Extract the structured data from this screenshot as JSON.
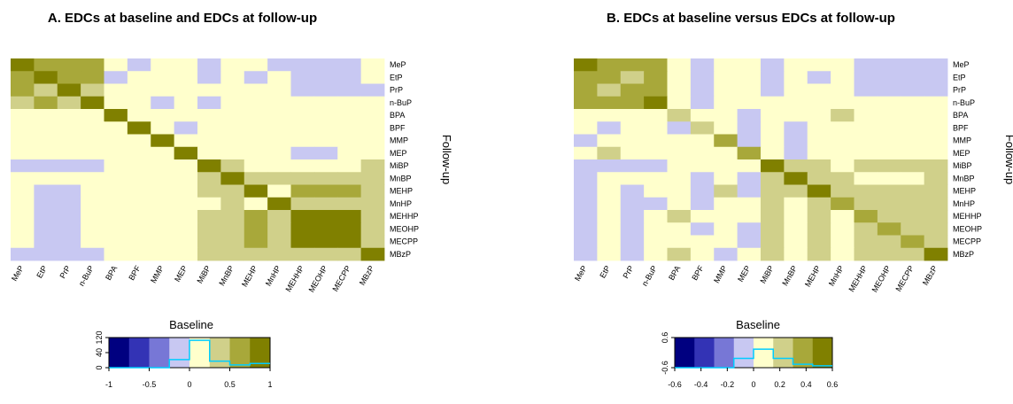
{
  "chart_data": [
    {
      "type": "heatmap",
      "title": "A. EDCs at baseline and EDCs at follow-up",
      "xlabel": "Baseline",
      "ylabel": "Follow-up",
      "x_categories": [
        "MeP",
        "EtP",
        "PrP",
        "n-BuP",
        "BPA",
        "BPF",
        "MMP",
        "MEP",
        "MiBP",
        "MnBP",
        "MEHP",
        "MnHP",
        "MEHHP",
        "MEOHP",
        "MECPP",
        "MBzP"
      ],
      "y_categories": [
        "MeP",
        "EtP",
        "PrP",
        "n-BuP",
        "BPA",
        "BPF",
        "MMP",
        "MEP",
        "MiBP",
        "MnBP",
        "MEHP",
        "MnHP",
        "MEHHP",
        "MEOHP",
        "MECPP",
        "MBzP"
      ],
      "palette": [
        "#000080",
        "#3333B5",
        "#7777D6",
        "#C8C8F2",
        "#FFFFCC",
        "#D0D08A",
        "#A8A83A",
        "#808000"
      ],
      "color_key": {
        "range": [
          -1,
          1
        ],
        "ticks": [
          "-1",
          "-0.5",
          "0",
          "0.5",
          "1"
        ],
        "histogram_axis_ticks": [
          "0",
          "40",
          "120"
        ],
        "histogram_line_color": "#00CCFF",
        "histogram": [
          0,
          0,
          0,
          35,
          118,
          28,
          12,
          18
        ]
      },
      "matrix_levels": [
        [
          7,
          6,
          6,
          6,
          4,
          3,
          4,
          4,
          3,
          4,
          4,
          3,
          3,
          3,
          3,
          4
        ],
        [
          6,
          7,
          6,
          6,
          3,
          4,
          4,
          4,
          3,
          4,
          3,
          4,
          3,
          3,
          3,
          4
        ],
        [
          6,
          5,
          7,
          5,
          4,
          4,
          4,
          4,
          4,
          4,
          4,
          4,
          3,
          3,
          3,
          3
        ],
        [
          5,
          6,
          5,
          7,
          4,
          4,
          3,
          4,
          3,
          4,
          4,
          4,
          4,
          4,
          4,
          4
        ],
        [
          4,
          4,
          4,
          4,
          7,
          4,
          4,
          4,
          4,
          4,
          4,
          4,
          4,
          4,
          4,
          4
        ],
        [
          4,
          4,
          4,
          4,
          4,
          7,
          4,
          3,
          4,
          4,
          4,
          4,
          4,
          4,
          4,
          4
        ],
        [
          4,
          4,
          4,
          4,
          4,
          4,
          7,
          4,
          4,
          4,
          4,
          4,
          4,
          4,
          4,
          4
        ],
        [
          4,
          4,
          4,
          4,
          4,
          4,
          4,
          7,
          4,
          4,
          4,
          4,
          3,
          3,
          4,
          4
        ],
        [
          3,
          3,
          3,
          3,
          4,
          4,
          4,
          4,
          7,
          5,
          4,
          4,
          4,
          4,
          4,
          5
        ],
        [
          4,
          4,
          4,
          4,
          4,
          4,
          4,
          4,
          5,
          7,
          5,
          5,
          5,
          5,
          5,
          5
        ],
        [
          4,
          3,
          3,
          4,
          4,
          4,
          4,
          4,
          5,
          5,
          7,
          4,
          6,
          6,
          6,
          5
        ],
        [
          4,
          3,
          3,
          4,
          4,
          4,
          4,
          4,
          4,
          5,
          4,
          7,
          5,
          5,
          5,
          5
        ],
        [
          4,
          3,
          3,
          4,
          4,
          4,
          4,
          4,
          5,
          5,
          6,
          5,
          7,
          7,
          7,
          5
        ],
        [
          4,
          3,
          3,
          4,
          4,
          4,
          4,
          4,
          5,
          5,
          6,
          5,
          7,
          7,
          7,
          5
        ],
        [
          4,
          3,
          3,
          4,
          4,
          4,
          4,
          4,
          5,
          5,
          6,
          5,
          7,
          7,
          7,
          5
        ],
        [
          3,
          3,
          3,
          3,
          4,
          4,
          4,
          4,
          5,
          5,
          5,
          5,
          5,
          5,
          5,
          7
        ]
      ]
    },
    {
      "type": "heatmap",
      "title": "B. EDCs at baseline versus EDCs at follow-up",
      "xlabel": "Baseline",
      "ylabel": "Follow-up",
      "x_categories": [
        "MeP",
        "EtP",
        "PrP",
        "n-BuP",
        "BPA",
        "BPF",
        "MMP",
        "MEP",
        "MiBP",
        "MnBP",
        "MEHP",
        "MnHP",
        "MEHHP",
        "MEOHP",
        "MECPP",
        "MBzP"
      ],
      "y_categories": [
        "MeP",
        "EtP",
        "PrP",
        "n-BuP",
        "BPA",
        "BPF",
        "MMP",
        "MEP",
        "MiBP",
        "MnBP",
        "MEHP",
        "MnHP",
        "MEHHP",
        "MEOHP",
        "MECPP",
        "MBzP"
      ],
      "palette": [
        "#000080",
        "#3333B5",
        "#7777D6",
        "#C8C8F2",
        "#FFFFCC",
        "#D0D08A",
        "#A8A83A",
        "#808000"
      ],
      "color_key": {
        "range": [
          -0.6,
          0.6
        ],
        "ticks": [
          "-0.6",
          "-0.4",
          "-0.2",
          "0",
          "0.2",
          "0.4",
          "0.6"
        ],
        "histogram_axis_ticks": [
          "-0.6",
          "0.6"
        ],
        "histogram_line_color": "#00CCFF",
        "histogram": [
          0,
          0,
          0,
          40,
          80,
          40,
          15,
          8
        ]
      },
      "matrix_levels": [
        [
          7,
          6,
          6,
          6,
          4,
          3,
          4,
          4,
          3,
          4,
          4,
          4,
          3,
          3,
          3,
          3
        ],
        [
          6,
          6,
          5,
          6,
          4,
          3,
          4,
          4,
          3,
          4,
          3,
          4,
          3,
          3,
          3,
          3
        ],
        [
          6,
          5,
          6,
          6,
          4,
          3,
          4,
          4,
          3,
          4,
          4,
          4,
          3,
          3,
          3,
          3
        ],
        [
          6,
          6,
          6,
          7,
          4,
          3,
          4,
          4,
          4,
          4,
          4,
          4,
          4,
          4,
          4,
          4
        ],
        [
          4,
          4,
          4,
          4,
          5,
          4,
          4,
          3,
          4,
          4,
          4,
          5,
          4,
          4,
          4,
          4
        ],
        [
          4,
          3,
          4,
          4,
          3,
          5,
          4,
          3,
          4,
          3,
          4,
          4,
          4,
          4,
          4,
          4
        ],
        [
          3,
          4,
          4,
          4,
          4,
          4,
          6,
          3,
          4,
          3,
          4,
          4,
          4,
          4,
          4,
          4
        ],
        [
          4,
          5,
          4,
          4,
          4,
          4,
          4,
          6,
          4,
          3,
          4,
          4,
          4,
          4,
          4,
          4
        ],
        [
          3,
          3,
          3,
          3,
          4,
          4,
          4,
          4,
          7,
          5,
          5,
          4,
          5,
          5,
          5,
          5
        ],
        [
          3,
          4,
          4,
          4,
          4,
          3,
          4,
          3,
          5,
          7,
          5,
          5,
          4,
          4,
          4,
          5
        ],
        [
          3,
          4,
          3,
          4,
          4,
          3,
          5,
          3,
          5,
          5,
          7,
          5,
          5,
          5,
          5,
          5
        ],
        [
          3,
          4,
          3,
          3,
          4,
          3,
          4,
          4,
          5,
          4,
          5,
          6,
          5,
          5,
          5,
          5
        ],
        [
          3,
          4,
          3,
          4,
          5,
          4,
          4,
          4,
          5,
          4,
          5,
          4,
          6,
          5,
          5,
          5
        ],
        [
          3,
          4,
          3,
          4,
          4,
          3,
          4,
          3,
          5,
          4,
          5,
          4,
          5,
          6,
          5,
          5
        ],
        [
          3,
          4,
          3,
          4,
          4,
          4,
          4,
          3,
          5,
          4,
          5,
          4,
          5,
          5,
          6,
          5
        ],
        [
          3,
          4,
          3,
          4,
          5,
          4,
          3,
          4,
          5,
          4,
          5,
          4,
          5,
          5,
          5,
          7
        ]
      ]
    }
  ]
}
